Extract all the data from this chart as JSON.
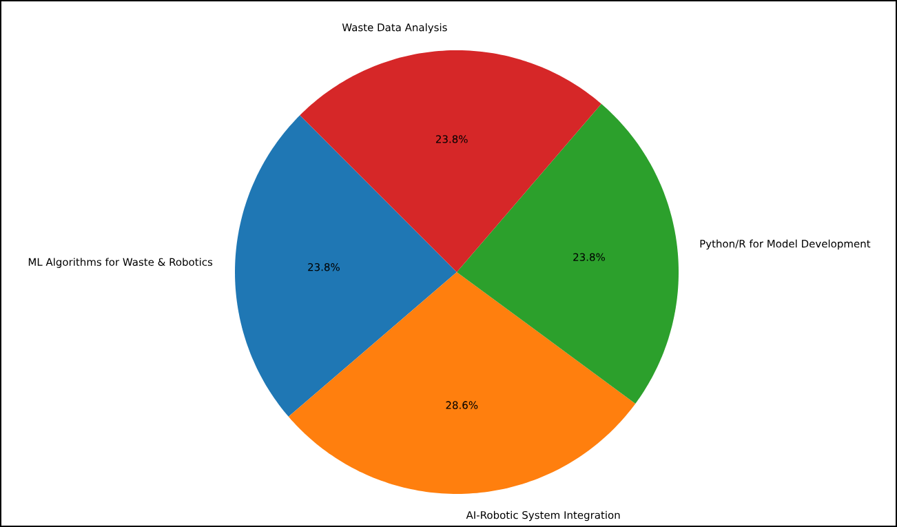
{
  "chart_data": {
    "type": "pie",
    "categories": [
      "ML Algorithms for Waste & Robotics",
      "AI-Robotic System Integration",
      "Python/R for Model Development",
      "Waste Data Analysis"
    ],
    "values": [
      23.8,
      28.6,
      23.8,
      23.8
    ],
    "colors": [
      "#1f77b4",
      "#ff7f0e",
      "#2ca02c",
      "#d62728"
    ],
    "value_labels": [
      "23.8%",
      "28.6%",
      "23.8%",
      "23.8%"
    ]
  }
}
